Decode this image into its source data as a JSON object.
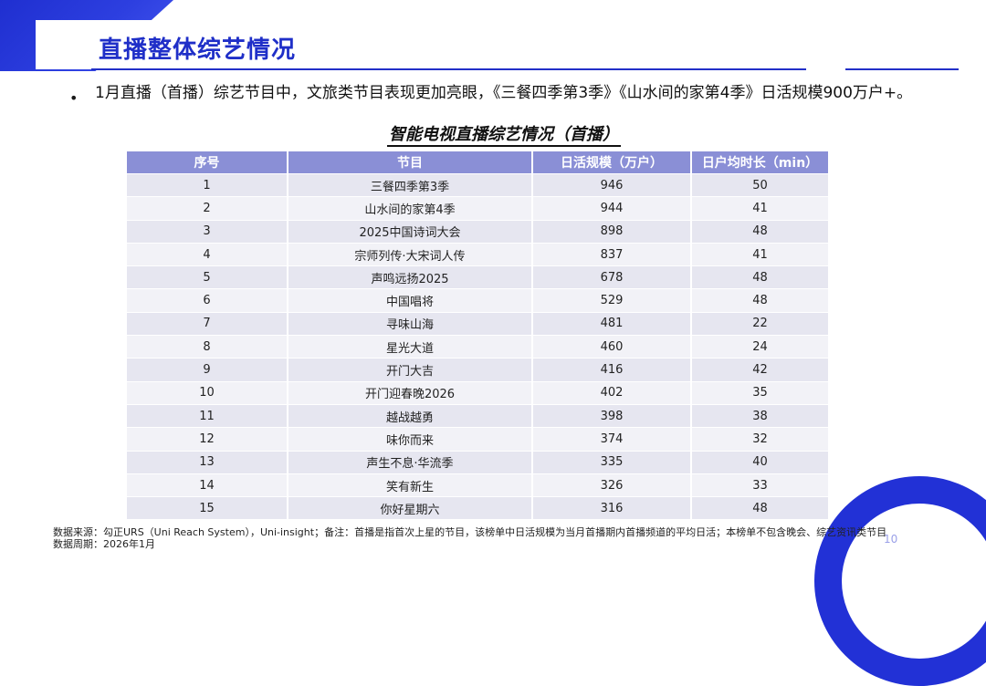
{
  "header": {
    "title": "直播整体综艺情况"
  },
  "summary": {
    "bullet": "1月直播（首播）综艺节目中，文旅类节目表现更加亮眼，《三餐四季第3季》《山水间的家第4季》日活规模900万户+。"
  },
  "table": {
    "title": "智能电视直播综艺情况（首播）",
    "columns": [
      "序号",
      "节目",
      "日活规模（万户）",
      "日户均时长（min）"
    ],
    "rows": [
      {
        "rank": "1",
        "program": "三餐四季第3季",
        "dau": "946",
        "duration": "50"
      },
      {
        "rank": "2",
        "program": "山水间的家第4季",
        "dau": "944",
        "duration": "41"
      },
      {
        "rank": "3",
        "program": "2025中国诗词大会",
        "dau": "898",
        "duration": "48"
      },
      {
        "rank": "4",
        "program": "宗师列传·大宋词人传",
        "dau": "837",
        "duration": "41"
      },
      {
        "rank": "5",
        "program": "声鸣远扬2025",
        "dau": "678",
        "duration": "48"
      },
      {
        "rank": "6",
        "program": "中国唱将",
        "dau": "529",
        "duration": "48"
      },
      {
        "rank": "7",
        "program": "寻味山海",
        "dau": "481",
        "duration": "22"
      },
      {
        "rank": "8",
        "program": "星光大道",
        "dau": "460",
        "duration": "24"
      },
      {
        "rank": "9",
        "program": "开门大吉",
        "dau": "416",
        "duration": "42"
      },
      {
        "rank": "10",
        "program": "开门迎春晚2026",
        "dau": "402",
        "duration": "35"
      },
      {
        "rank": "11",
        "program": "越战越勇",
        "dau": "398",
        "duration": "38"
      },
      {
        "rank": "12",
        "program": "味你而来",
        "dau": "374",
        "duration": "32"
      },
      {
        "rank": "13",
        "program": "声生不息·华流季",
        "dau": "335",
        "duration": "40"
      },
      {
        "rank": "14",
        "program": "笑有新生",
        "dau": "326",
        "duration": "33"
      },
      {
        "rank": "15",
        "program": "你好星期六",
        "dau": "316",
        "duration": "48"
      }
    ]
  },
  "footer": {
    "source": "数据来源：勾正URS（Uni Reach System），Uni-insight；备注：首播是指首次上星的节目，该榜单中日活规模为当月首播期内首播频道的平均日活；本榜单不包含晚会、综艺资讯类节目",
    "period": "数据周期：2026年1月",
    "page_number": "10"
  },
  "colors": {
    "brand_blue": "#1f2fc8",
    "header_row": "#8a8fd6",
    "row_light": "#e6e6f0"
  }
}
